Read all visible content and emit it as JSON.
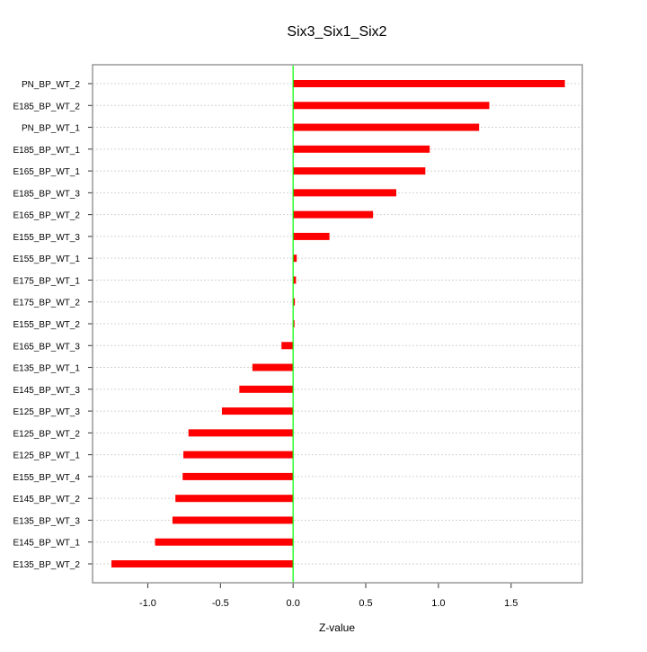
{
  "chart_data": {
    "type": "bar",
    "orientation": "horizontal",
    "title": "Six3_Six1_Six2",
    "xlabel": "Z-value",
    "ylabel": "",
    "xlim": [
      -1.38,
      1.99
    ],
    "xticks": [
      -1.0,
      -0.5,
      0.0,
      0.5,
      1.0,
      1.5
    ],
    "xtick_labels": [
      "-1.0",
      "-0.5",
      "0.0",
      "0.5",
      "1.0",
      "1.5"
    ],
    "grid": "horizontal dotted",
    "reference_line": 0.0,
    "colors": {
      "bar": "#ff0000",
      "reference": "#00ff00",
      "grid": "#d3d3d3",
      "frame": "#999999"
    },
    "categories": [
      "PN_BP_WT_2",
      "E185_BP_WT_2",
      "PN_BP_WT_1",
      "E185_BP_WT_1",
      "E165_BP_WT_1",
      "E185_BP_WT_3",
      "E165_BP_WT_2",
      "E155_BP_WT_3",
      "E155_BP_WT_1",
      "E175_BP_WT_1",
      "E175_BP_WT_2",
      "E155_BP_WT_2",
      "E165_BP_WT_3",
      "E135_BP_WT_1",
      "E145_BP_WT_3",
      "E125_BP_WT_3",
      "E125_BP_WT_2",
      "E125_BP_WT_1",
      "E155_BP_WT_4",
      "E145_BP_WT_2",
      "E135_BP_WT_3",
      "E145_BP_WT_1",
      "E135_BP_WT_2"
    ],
    "values": [
      1.87,
      1.35,
      1.28,
      0.94,
      0.91,
      0.71,
      0.55,
      0.25,
      0.025,
      0.02,
      0.012,
      0.006,
      -0.08,
      -0.28,
      -0.37,
      -0.49,
      -0.72,
      -0.755,
      -0.76,
      -0.81,
      -0.83,
      -0.95,
      -1.25
    ]
  }
}
